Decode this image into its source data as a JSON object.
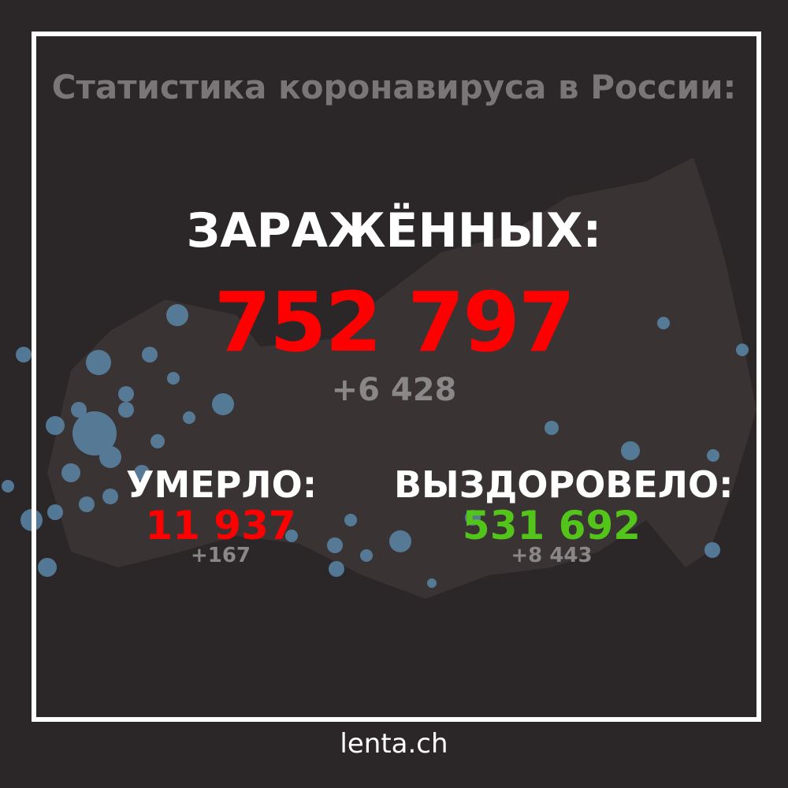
{
  "title": "Статистика коронавируса в России:",
  "infected": {
    "label": "ЗАРАЖЁННЫХ:",
    "value": "752 797",
    "delta": "+6 428",
    "color": "#ff0000"
  },
  "deaths": {
    "label": "УМЕРЛО:",
    "value": "11 937",
    "delta": "+167",
    "color": "#ff0000"
  },
  "recovered": {
    "label": "ВЫЗДОРОВЕЛО:",
    "value": "531 692",
    "delta": "+8 443",
    "color": "#52c41a"
  },
  "footer": "lenta.ch",
  "colors": {
    "background": "#2b2728",
    "map": "#3a3334",
    "bubbles": "#5b87a8"
  }
}
